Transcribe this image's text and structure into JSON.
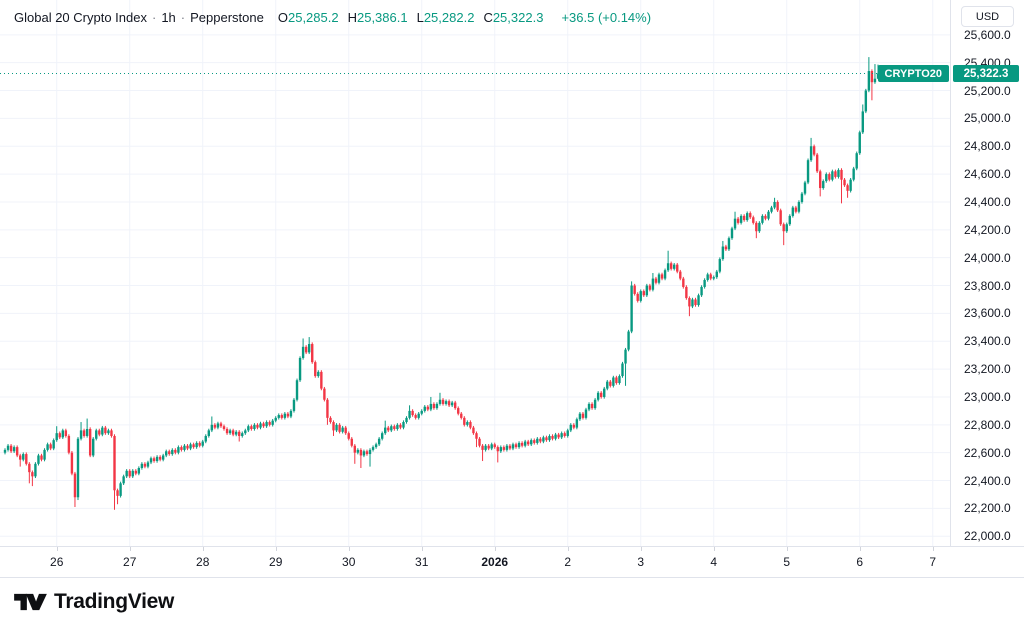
{
  "header": {
    "title": "Global 20 Crypto Index",
    "separator": "·",
    "interval": "1h",
    "provider": "Pepperstone",
    "ohlc": {
      "o_label": "O",
      "o": "25,285.2",
      "h_label": "H",
      "h": "25,386.1",
      "l_label": "L",
      "l": "25,282.2",
      "c_label": "C",
      "c": "25,322.3"
    },
    "change": "+36.5 (+0.14%)"
  },
  "price_scale": {
    "currency": "USD",
    "labels": [
      "25,600.0",
      "25,400.0",
      "25,200.0",
      "25,000.0",
      "24,800.0",
      "24,600.0",
      "24,400.0",
      "24,200.0",
      "24,000.0",
      "23,800.0",
      "23,600.0",
      "23,400.0",
      "23,200.0",
      "23,000.0",
      "22,800.0",
      "22,600.0",
      "22,400.0",
      "22,200.0",
      "22,000.0"
    ],
    "badge": {
      "symbol": "CRYPTO20",
      "value": "25,322.3"
    }
  },
  "time_scale": {
    "ticks": [
      {
        "label": "26",
        "i": 17
      },
      {
        "label": "27",
        "i": 41
      },
      {
        "label": "28",
        "i": 65
      },
      {
        "label": "29",
        "i": 89
      },
      {
        "label": "30",
        "i": 113
      },
      {
        "label": "31",
        "i": 137
      },
      {
        "label": "2026",
        "i": 161,
        "bold": true
      },
      {
        "label": "2",
        "i": 185
      },
      {
        "label": "3",
        "i": 209
      },
      {
        "label": "4",
        "i": 233
      },
      {
        "label": "5",
        "i": 257
      },
      {
        "label": "6",
        "i": 281
      },
      {
        "label": "7",
        "i": 305
      }
    ]
  },
  "footer": {
    "brand": "TradingView"
  },
  "colors": {
    "up": "#089981",
    "down": "#f23645",
    "grid": "#f0f3fa",
    "axis_border": "#e0e3eb",
    "text": "#131722",
    "badge_bg": "#089981",
    "badge_text": "#ffffff"
  },
  "chart_data": {
    "type": "candlestick",
    "symbol": "Global 20 Crypto Index",
    "interval": "1h",
    "provider": "Pepperstone",
    "currency": "USD",
    "last": {
      "open": 25285.2,
      "high": 25386.1,
      "low": 25282.2,
      "close": 25322.3,
      "change": 36.5,
      "change_pct": 0.14
    },
    "price_line": 25322.3,
    "y_axis": {
      "price_at_top": 25850,
      "price_at_bottom": 21930,
      "tick_step": 200,
      "min_label": 22000,
      "max_label": 25600
    },
    "x_axis": {
      "tick_labels": [
        "26",
        "27",
        "28",
        "29",
        "30",
        "31",
        "2026",
        "2",
        "3",
        "4",
        "5",
        "6",
        "7"
      ],
      "candles_per_day": 24
    },
    "open_first": 22600,
    "default_wick": 12,
    "closes": [
      22620,
      22650,
      22610,
      22640,
      22580,
      22550,
      22590,
      22520,
      22460,
      22430,
      22520,
      22580,
      22550,
      22620,
      22660,
      22630,
      22690,
      22740,
      22710,
      22760,
      22720,
      22600,
      22450,
      22280,
      22700,
      22760,
      22720,
      22770,
      22580,
      22700,
      22760,
      22730,
      22780,
      22740,
      22760,
      22720,
      22330,
      22290,
      22380,
      22430,
      22470,
      22430,
      22470,
      22450,
      22490,
      22520,
      22500,
      22530,
      22560,
      22540,
      22570,
      22550,
      22580,
      22610,
      22590,
      22620,
      22600,
      22640,
      22620,
      22650,
      22630,
      22660,
      22640,
      22670,
      22650,
      22680,
      22720,
      22760,
      22800,
      22780,
      22810,
      22790,
      22770,
      22740,
      22760,
      22730,
      22750,
      22720,
      22740,
      22760,
      22790,
      22770,
      22800,
      22780,
      22810,
      22790,
      22820,
      22800,
      22830,
      22850,
      22870,
      22850,
      22880,
      22860,
      22900,
      22980,
      23120,
      23280,
      23360,
      23320,
      23380,
      23250,
      23150,
      23180,
      23060,
      22980,
      22850,
      22820,
      22760,
      22800,
      22750,
      22780,
      22740,
      22700,
      22650,
      22600,
      22620,
      22580,
      22610,
      22590,
      22620,
      22640,
      22660,
      22700,
      22740,
      22780,
      22760,
      22790,
      22770,
      22800,
      22780,
      22820,
      22850,
      22900,
      22870,
      22850,
      22880,
      22900,
      22930,
      22910,
      22950,
      22920,
      22950,
      22980,
      22950,
      22970,
      22940,
      22960,
      22920,
      22880,
      22850,
      22800,
      22820,
      22780,
      22740,
      22700,
      22650,
      22620,
      22650,
      22630,
      22660,
      22640,
      22610,
      22640,
      22620,
      22650,
      22630,
      22660,
      22640,
      22670,
      22650,
      22680,
      22660,
      22690,
      22670,
      22700,
      22680,
      22710,
      22690,
      22720,
      22700,
      22730,
      22710,
      22740,
      22720,
      22760,
      22800,
      22780,
      22840,
      22880,
      22850,
      22910,
      22950,
      22920,
      22980,
      23030,
      23000,
      23060,
      23110,
      23080,
      23140,
      23100,
      23150,
      23240,
      23340,
      23470,
      23800,
      23740,
      23690,
      23760,
      23730,
      23800,
      23770,
      23850,
      23820,
      23880,
      23850,
      23910,
      23960,
      23920,
      23950,
      23900,
      23850,
      23790,
      23710,
      23650,
      23700,
      23660,
      23730,
      23790,
      23840,
      23880,
      23850,
      23860,
      23900,
      23990,
      24080,
      24060,
      24140,
      24210,
      24280,
      24250,
      24300,
      24270,
      24320,
      24290,
      24250,
      24190,
      24250,
      24300,
      24280,
      24330,
      24360,
      24400,
      24340,
      24240,
      24190,
      24240,
      24300,
      24360,
      24330,
      24400,
      24460,
      24540,
      24700,
      24800,
      24740,
      24620,
      24500,
      24550,
      24600,
      24560,
      24620,
      24580,
      24630,
      24560,
      24520,
      24480,
      24560,
      24640,
      24750,
      24900,
      25050,
      25200,
      25340,
      25260,
      25285,
      25322.3
    ],
    "high_wicks": {
      "17": 22790,
      "25": 22820,
      "27": 22845,
      "68": 22860,
      "98": 23420,
      "100": 23430,
      "125": 22830,
      "133": 22940,
      "140": 23000,
      "143": 23030,
      "206": 23830,
      "213": 23890,
      "218": 24050,
      "236": 24120,
      "240": 24330,
      "253": 24430,
      "265": 24860,
      "282": 25100,
      "284": 25440,
      "286": 25390,
      "287": 25386.1
    },
    "low_wicks": {
      "5": 22500,
      "8": 22380,
      "9": 22360,
      "23": 22210,
      "24": 22260,
      "36": 22190,
      "37": 22230,
      "77": 22680,
      "106": 22800,
      "108": 22720,
      "115": 22520,
      "117": 22490,
      "120": 22500,
      "155": 22640,
      "157": 22540,
      "162": 22530,
      "204": 23080,
      "225": 23580,
      "247": 24140,
      "256": 24090,
      "268": 24440,
      "275": 24390,
      "277": 24430,
      "285": 25130,
      "287": 25282.2
    }
  }
}
